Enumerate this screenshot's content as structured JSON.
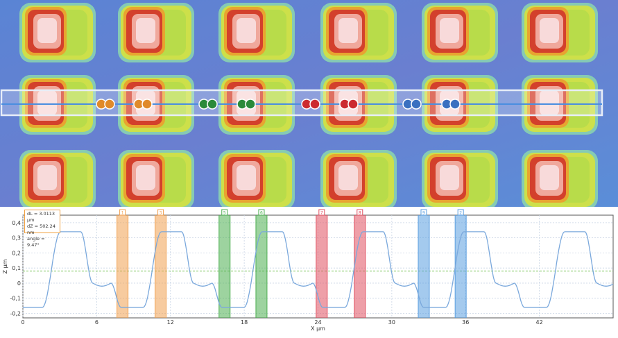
{
  "chart_data": {
    "type": "line",
    "xlabel": "X µm",
    "ylabel": "Z µm",
    "xlim": [
      0,
      48
    ],
    "ylim": [
      -0.23,
      0.45
    ],
    "x_ticks": [
      "0",
      "6",
      "12",
      "18",
      "24",
      "30",
      "36",
      "42"
    ],
    "x_tick_values": [
      0,
      6,
      12,
      18,
      24,
      30,
      36,
      42
    ],
    "y_ticks": [
      "0,4",
      "0,3",
      "0,2",
      "0,1",
      "0",
      "-0,1",
      "-0,2"
    ],
    "y_tick_values": [
      0.4,
      0.3,
      0.2,
      0.1,
      0,
      -0.1,
      -0.2
    ],
    "reference_line_y": 0.08,
    "profile": {
      "period": 8.2,
      "phase": 0.6,
      "high": 0.34,
      "low": -0.16
    },
    "cursors": [
      {
        "label": "1",
        "x": 8.1,
        "color": "#f0a050"
      },
      {
        "label": "3",
        "x": 11.2,
        "color": "#f0a050"
      },
      {
        "label": "5",
        "x": 16.4,
        "color": "#4caf50"
      },
      {
        "label": "6",
        "x": 19.4,
        "color": "#4caf50"
      },
      {
        "label": "7",
        "x": 24.3,
        "color": "#e05060"
      },
      {
        "label": "8",
        "x": 27.4,
        "color": "#e05060"
      },
      {
        "label": "9",
        "x": 32.6,
        "color": "#5a9ee0"
      },
      {
        "label": "2",
        "x": 35.6,
        "color": "#5a9ee0"
      }
    ]
  },
  "measurement": {
    "dl": "dL = 3.0113 µm",
    "dz": "dZ = 502.24 nm",
    "angle": "angle = 9.47°"
  },
  "heatmap": {
    "colors": {
      "background": "#5b8fd6",
      "trough": "#7a6ec8",
      "plateau": "#b9d64a",
      "mid": "#e6d040",
      "ridge": "#e07a30",
      "peak": "#c8302a",
      "highlight": "#f6d0d0"
    },
    "marker_pairs": [
      {
        "color": "#e08a2a"
      },
      {
        "color": "#e08a2a"
      },
      {
        "color": "#2a8a3a"
      },
      {
        "color": "#2a8a3a"
      },
      {
        "color": "#cc2a30"
      },
      {
        "color": "#cc2a30"
      },
      {
        "color": "#3a70c0"
      },
      {
        "color": "#3a70c0"
      }
    ]
  }
}
